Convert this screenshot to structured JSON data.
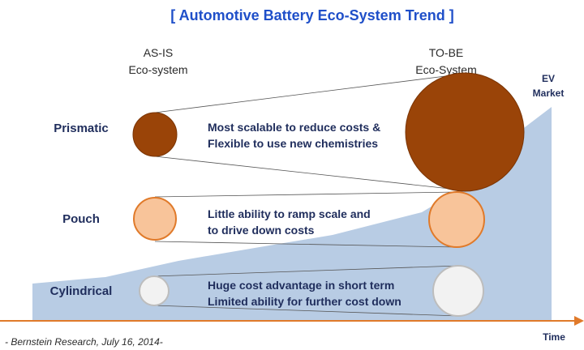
{
  "title": "[ Automotive Battery Eco-System Trend ]",
  "as_is": {
    "line1": "AS-IS",
    "line2": "Eco-system"
  },
  "to_be": {
    "line1": "TO-BE",
    "line2": "Eco-System"
  },
  "ev_market": {
    "line1": "EV",
    "line2": "Market"
  },
  "time_label": "Time",
  "rows": [
    {
      "label": "Prismatic",
      "desc1": "Most scalable to reduce costs &",
      "desc2": "Flexible to use new chemistries"
    },
    {
      "label": "Pouch",
      "desc1": "Little ability to ramp scale and",
      "desc2": "to drive down costs"
    },
    {
      "label": "Cylindrical",
      "desc1": "Huge cost advantage in short term",
      "desc2": "Limited ability for further cost down"
    }
  ],
  "source": "- Bernstein Research, July 16, 2014-",
  "colors": {
    "title": "#1f4fc9",
    "navy_text": "#1f2d5c",
    "prismatic_fill": "#9a4408",
    "pouch_fill": "#f8c49a",
    "pouch_stroke": "#e07a2a",
    "cylindrical_fill": "#f2f2f2",
    "cylindrical_stroke": "#bdbdbd",
    "ev_area": "#b8cce4",
    "axis": "#e07a2a"
  }
}
